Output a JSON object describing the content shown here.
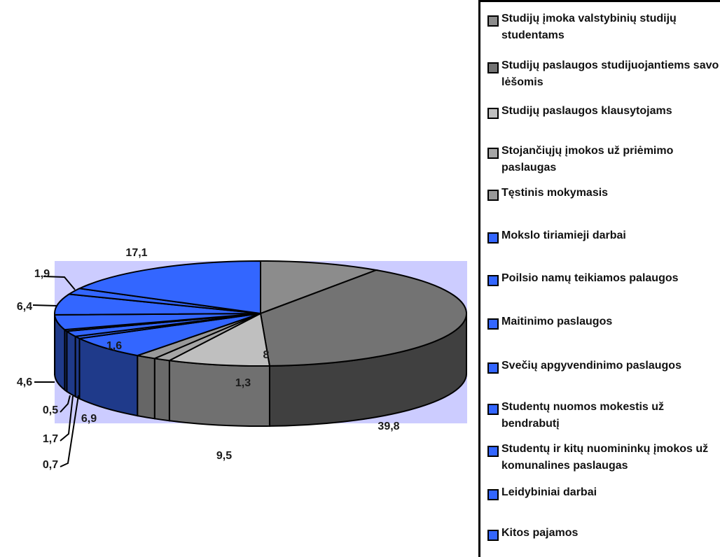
{
  "chart_data": {
    "type": "pie",
    "style": "3d-exploded",
    "slices": [
      {
        "label": "Studijų įmoka valstybinių studijų studentams",
        "value": 9.5,
        "value_label": "9,5",
        "color": "#8c8c8c"
      },
      {
        "label": "Studijų paslaugos studijuojantiems savo lėšomis",
        "value": 39.8,
        "value_label": "39,8",
        "color": "#737373"
      },
      {
        "label": "Studijų paslaugos klausytojams",
        "value": 8,
        "value_label": "8",
        "color": "#bfbfbf"
      },
      {
        "label": "Stojančiųjų įmokos už priėmimo paslaugas",
        "value": 1.3,
        "value_label": "1,3",
        "color": "#a6a6a6"
      },
      {
        "label": "Tęstinis mokymasis",
        "value": 1.6,
        "value_label": "1,6",
        "color": "#999999"
      },
      {
        "label": "Mokslo tiriamieji darbai",
        "value": 6.9,
        "value_label": "6,9",
        "color": "#3366ff"
      },
      {
        "label": "Poilsio namų teikiamos palaugos",
        "value": 0.7,
        "value_label": "0,7",
        "color": "#3366ff"
      },
      {
        "label": "Maitinimo paslaugos",
        "value": 1.7,
        "value_label": "1,7",
        "color": "#3366ff"
      },
      {
        "label": "Svečių apgyvendinimo paslaugos",
        "value": 0.5,
        "value_label": "0,5",
        "color": "#3366ff"
      },
      {
        "label": "Studentų nuomos mokestis už bendrabutį",
        "value": 4.6,
        "value_label": "4,6",
        "color": "#3366ff"
      },
      {
        "label": "Studentų ir kitų nuomininkų įmokos už komunalines paslaugas",
        "value": 6.4,
        "value_label": "6,4",
        "color": "#3366ff"
      },
      {
        "label": "Leidybiniai darbai",
        "value": 1.9,
        "value_label": "1,9",
        "color": "#3366ff"
      },
      {
        "label": "Kitos pajamos",
        "value": 17.1,
        "value_label": "17,1",
        "color": "#3366ff"
      }
    ],
    "plot_area_color": "#ccccff",
    "legend_position": "right"
  }
}
